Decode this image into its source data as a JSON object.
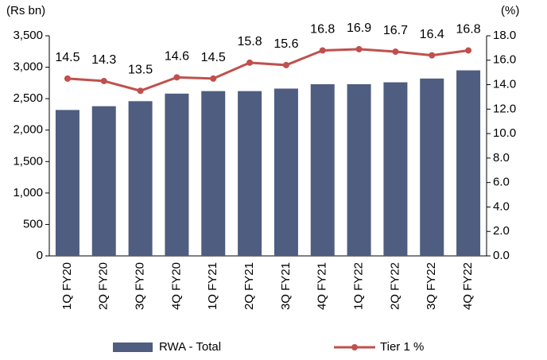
{
  "chart_data": {
    "type": "bar_line",
    "y_label": "(Rs bn)",
    "y2_label": "(%)",
    "categories": [
      "1Q FY20",
      "2Q FY20",
      "3Q FY20",
      "4Q FY20",
      "1Q FY21",
      "2Q FY21",
      "3Q FY21",
      "4Q FY21",
      "1Q FY22",
      "2Q FY22",
      "3Q FY22",
      "4Q FY22"
    ],
    "series": [
      {
        "name": "RWA - Total",
        "type": "bar",
        "color": "#4e5d80",
        "values": [
          2320,
          2380,
          2460,
          2580,
          2620,
          2620,
          2660,
          2730,
          2730,
          2760,
          2820,
          2950
        ]
      },
      {
        "name": "Tier 1 %",
        "type": "line",
        "axis": "y2",
        "color": "#c0504d",
        "values": [
          14.5,
          14.3,
          13.5,
          14.6,
          14.5,
          15.8,
          15.6,
          16.8,
          16.9,
          16.7,
          16.4,
          16.8
        ]
      }
    ],
    "ylim": [
      0,
      3500
    ],
    "yticks": [
      0,
      500,
      {
        "value": 1000,
        "label": "1,000"
      },
      {
        "value": 1500,
        "label": "1,500"
      },
      {
        "value": 2000,
        "label": "2,000"
      },
      {
        "value": 2500,
        "label": "2,500"
      },
      {
        "value": 3000,
        "label": "3,000"
      },
      {
        "value": 3500,
        "label": "3,500"
      }
    ],
    "y2lim": [
      0,
      18
    ],
    "y2ticks": [
      {
        "value": 0,
        "label": "0.0"
      },
      {
        "value": 2,
        "label": "2.0"
      },
      {
        "value": 4,
        "label": "4.0"
      },
      {
        "value": 6,
        "label": "6.0"
      },
      {
        "value": 8,
        "label": "8.0"
      },
      {
        "value": 10,
        "label": "10.0"
      },
      {
        "value": 12,
        "label": "12.0"
      },
      {
        "value": 14,
        "label": "14.0"
      },
      {
        "value": 16,
        "label": "16.0"
      },
      {
        "value": 18,
        "label": "18.0"
      }
    ],
    "legend": "bottom"
  }
}
